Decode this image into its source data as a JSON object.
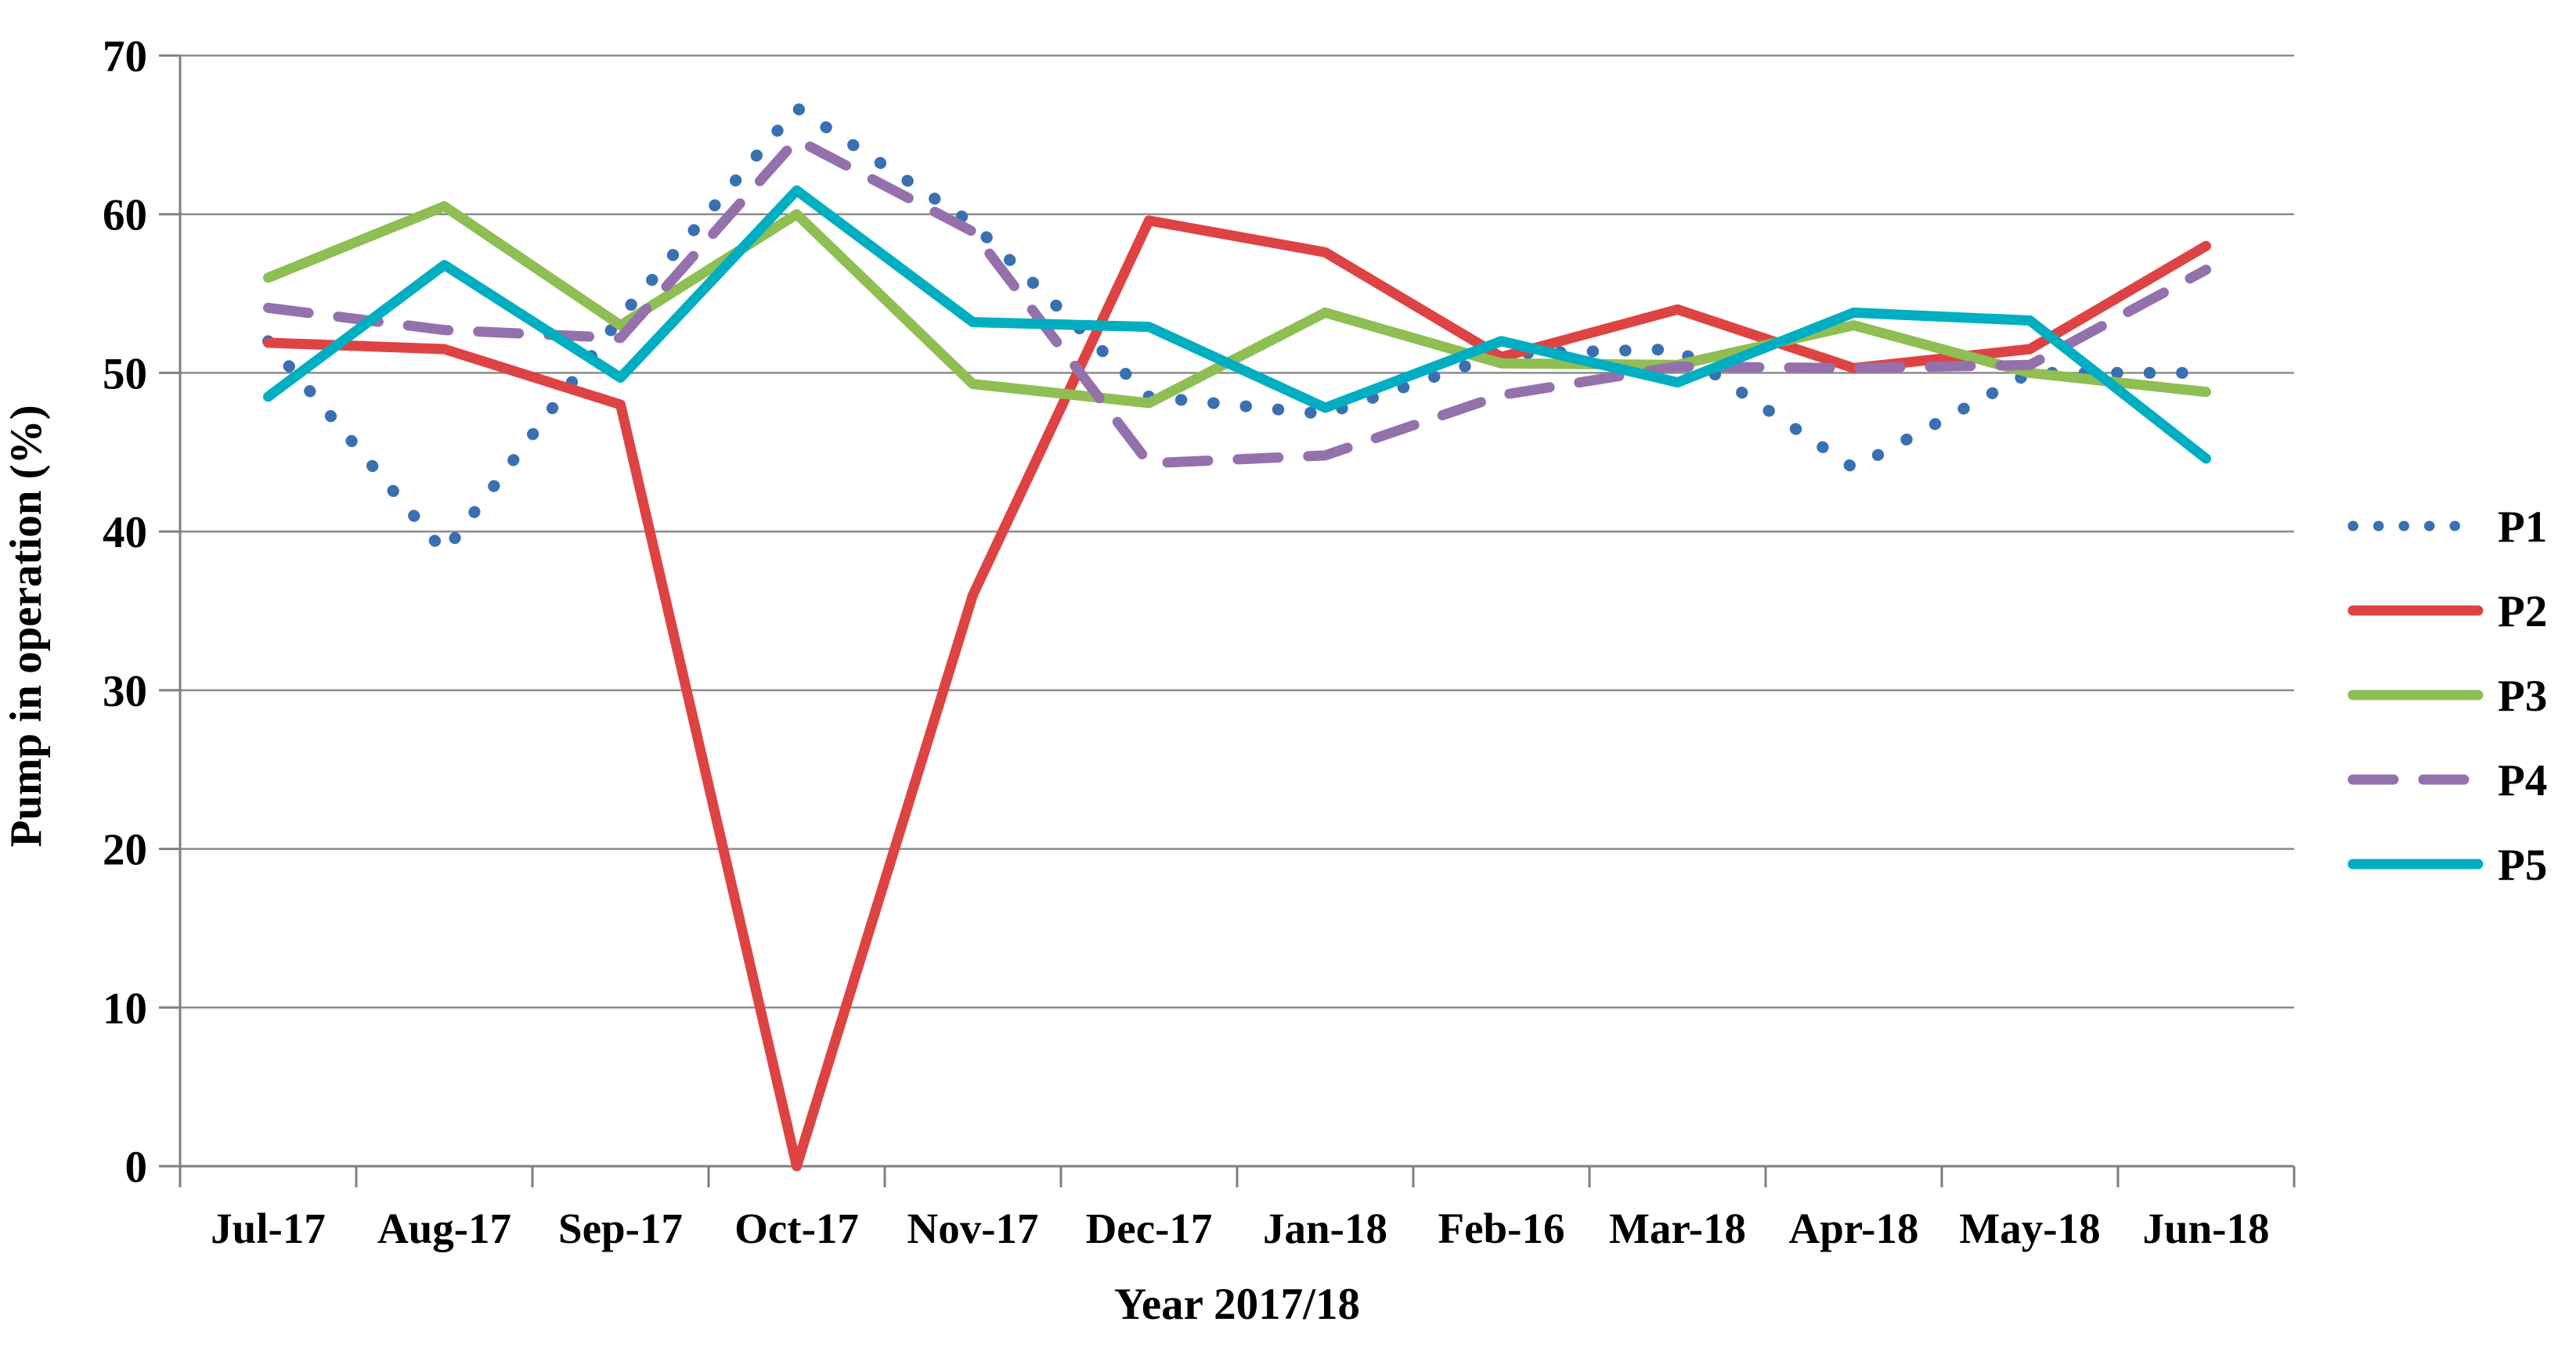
{
  "chart_data": {
    "type": "line",
    "title": "",
    "xlabel": "Year 2017/18",
    "ylabel": "Pump in operation  (%)",
    "ylim": [
      0,
      70
    ],
    "yticks": [
      0,
      10,
      20,
      30,
      40,
      50,
      60,
      70
    ],
    "grid": true,
    "legend_position": "right",
    "categories": [
      "Jul-17",
      "Aug-17",
      "Sep-17",
      "Oct-17",
      "Nov-17",
      "Dec-17",
      "Jan-18",
      "Feb-16",
      "Mar-18",
      "Apr-18",
      "May-18",
      "Jun-18"
    ],
    "series": [
      {
        "name": "P1",
        "color": "#3A70B2",
        "line_style": "dotted",
        "values": [
          52.0,
          38.7,
          53.5,
          66.7,
          59.4,
          48.5,
          47.4,
          51.2,
          51.5,
          44.0,
          50.0,
          50.0
        ]
      },
      {
        "name": "P2",
        "color": "#DE4343",
        "line_style": "solid",
        "values": [
          51.9,
          51.5,
          48.0,
          0.0,
          36.0,
          59.6,
          57.6,
          51.0,
          54.0,
          50.3,
          51.5,
          58.0
        ]
      },
      {
        "name": "P3",
        "color": "#8FBE52",
        "line_style": "solid",
        "values": [
          56.0,
          60.5,
          53.0,
          60.0,
          49.3,
          48.1,
          53.8,
          50.6,
          50.5,
          53.0,
          50.0,
          48.8
        ]
      },
      {
        "name": "P4",
        "color": "#9471AC",
        "line_style": "dashed",
        "values": [
          54.1,
          52.7,
          52.2,
          64.7,
          58.9,
          44.3,
          44.8,
          48.6,
          50.4,
          50.3,
          50.5,
          56.5
        ]
      },
      {
        "name": "P5",
        "color": "#00AEC2",
        "line_style": "solid",
        "values": [
          48.5,
          56.8,
          49.7,
          61.5,
          53.2,
          52.9,
          47.8,
          52.0,
          49.4,
          53.8,
          53.3,
          44.6
        ]
      }
    ]
  }
}
